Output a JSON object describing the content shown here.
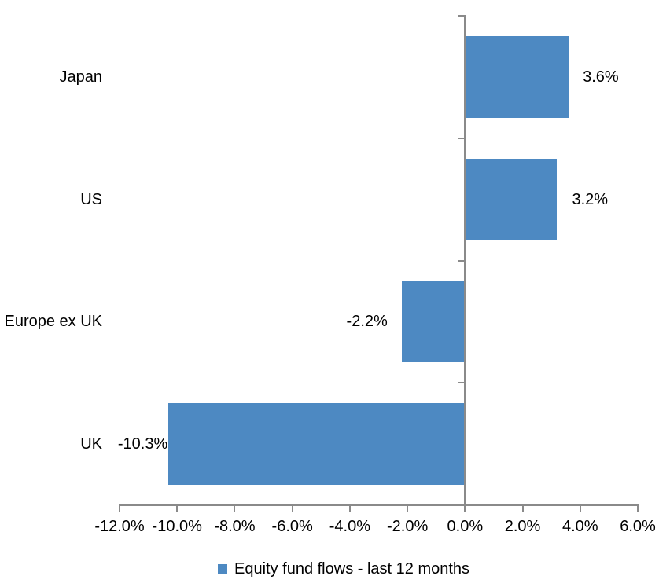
{
  "chart_data": {
    "type": "bar",
    "orientation": "horizontal",
    "title": "",
    "categories": [
      "Japan",
      "US",
      "Europe ex UK",
      "UK"
    ],
    "values": [
      3.6,
      3.2,
      -2.2,
      -10.3
    ],
    "data_labels": [
      "3.6%",
      "3.2%",
      "-2.2%",
      "-10.3%"
    ],
    "series_name": "Equity fund flows - last 12 months",
    "xlim": [
      -12,
      6
    ],
    "x_tick_step": 2,
    "x_tick_values": [
      -12,
      -10,
      -8,
      -6,
      -4,
      -2,
      0,
      2,
      4,
      6
    ],
    "x_tick_labels": [
      "-12.0%",
      "-10.0%",
      "-8.0%",
      "-6.0%",
      "-4.0%",
      "-2.0%",
      "0.0%",
      "2.0%",
      "4.0%",
      "6.0%"
    ],
    "grid": false,
    "legend_position": "bottom",
    "bar_color": "#4D89C2",
    "axis_color": "#8A8A8A",
    "text_color": "#000000"
  }
}
